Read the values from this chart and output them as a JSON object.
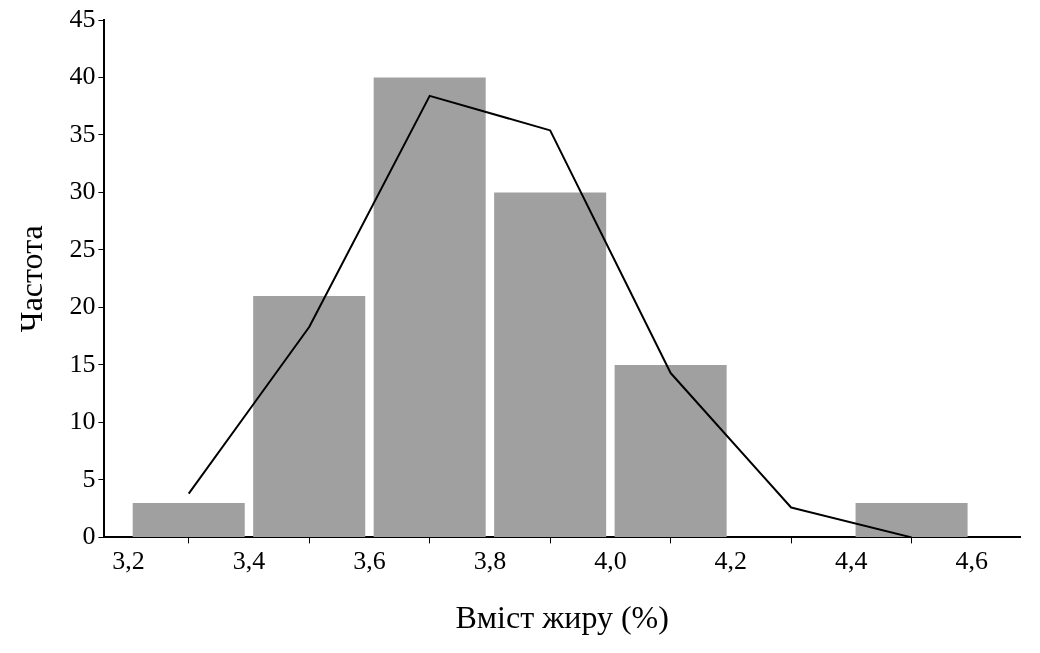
{
  "chart_data": {
    "type": "histogram",
    "xlabel": "Вміст жиру (%)",
    "ylabel": "Частота",
    "bins": [
      3.2,
      3.4,
      3.6,
      3.8,
      4.0,
      4.2,
      4.4,
      4.6
    ],
    "series": [
      {
        "color": "#a0a0a0",
        "values": [
          3,
          21,
          40,
          30,
          15,
          0,
          3
        ]
      },
      {
        "type": "line",
        "color": "#000000",
        "x": [
          3.3,
          3.5,
          3.7,
          3.9,
          4.1,
          4.3,
          4.5
        ],
        "values": [
          3.8,
          18.3,
          38.4,
          35.4,
          14.3,
          2.6,
          0
        ]
      }
    ],
    "xlim": [
      3.16,
      4.68
    ],
    "ylim": [
      0,
      45
    ],
    "xticks": [
      {
        "value": 3.2,
        "label": "3,2"
      },
      {
        "value": 3.4,
        "label": "3,4"
      },
      {
        "value": 3.6,
        "label": "3,6"
      },
      {
        "value": 3.8,
        "label": "3,8"
      },
      {
        "value": 4.0,
        "label": "4,0"
      },
      {
        "value": 4.2,
        "label": "4,2"
      },
      {
        "value": 4.4,
        "label": "4,4"
      },
      {
        "value": 4.6,
        "label": "4,6"
      }
    ],
    "yticks": [
      0,
      5,
      10,
      15,
      20,
      25,
      30,
      35,
      40,
      45
    ],
    "grid": false,
    "legend": false,
    "marker": "none",
    "line_style": "solid"
  }
}
